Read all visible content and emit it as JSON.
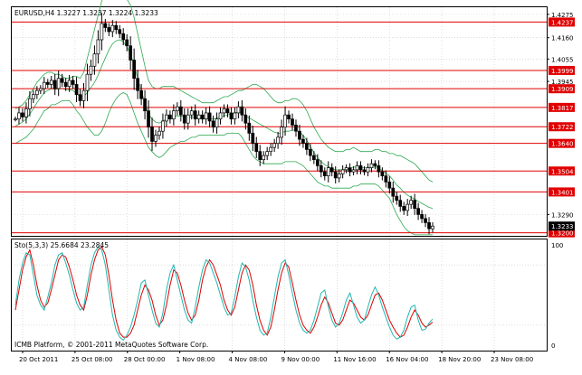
{
  "chart_data": [
    {
      "type": "candlestick",
      "header": "EURUSD,H4  1.3227 1.3237 1.3224 1.3233",
      "ylim": [
        1.3185,
        1.431
      ],
      "y_ticks": [
        "1.4275",
        "1.4160",
        "1.4055",
        "1.3945",
        "1.3290"
      ],
      "horizontal_levels": [
        1.4237,
        1.3999,
        1.3909,
        1.3817,
        1.3722,
        1.364,
        1.3504,
        1.3401,
        1.32
      ],
      "level_labels": [
        "1.4237",
        "1.3999",
        "1.3909",
        "1.3817",
        "1.3722",
        "1.3640",
        "1.3504",
        "1.3401",
        "1.3200"
      ],
      "current_price_label": "1.3233",
      "current_price": 1.3233,
      "x_ticks": [
        "20 Oct 2011",
        "25 Oct 08:00",
        "28 Oct 00:00",
        "1 Nov 08:00",
        "4 Nov 08:00",
        "9 Nov 00:00",
        "11 Nov 16:00",
        "16 Nov 04:00",
        "18 Nov 20:00",
        "23 Nov 08:00"
      ],
      "close": [
        1.376,
        1.379,
        1.377,
        1.381,
        1.386,
        1.388,
        1.39,
        1.391,
        1.394,
        1.393,
        1.395,
        1.391,
        1.396,
        1.394,
        1.392,
        1.395,
        1.393,
        1.388,
        1.385,
        1.39,
        1.398,
        1.402,
        1.408,
        1.415,
        1.423,
        1.421,
        1.419,
        1.422,
        1.42,
        1.418,
        1.415,
        1.412,
        1.405,
        1.396,
        1.39,
        1.386,
        1.38,
        1.372,
        1.365,
        1.368,
        1.37,
        1.375,
        1.378,
        1.376,
        1.38,
        1.382,
        1.378,
        1.374,
        1.378,
        1.38,
        1.376,
        1.378,
        1.376,
        1.379,
        1.375,
        1.372,
        1.376,
        1.379,
        1.381,
        1.379,
        1.376,
        1.379,
        1.382,
        1.378,
        1.374,
        1.369,
        1.364,
        1.36,
        1.356,
        1.358,
        1.36,
        1.362,
        1.364,
        1.367,
        1.372,
        1.378,
        1.376,
        1.373,
        1.37,
        1.366,
        1.364,
        1.361,
        1.358,
        1.356,
        1.353,
        1.35,
        1.348,
        1.352,
        1.35,
        1.347,
        1.349,
        1.351,
        1.352,
        1.35,
        1.351,
        1.353,
        1.351,
        1.35,
        1.352,
        1.354,
        1.353,
        1.35,
        1.348,
        1.345,
        1.342,
        1.338,
        1.336,
        1.333,
        1.331,
        1.334,
        1.336,
        1.332,
        1.329,
        1.327,
        1.325,
        1.322,
        1.3233
      ],
      "bollinger_upper": [
        1.381,
        1.382,
        1.383,
        1.385,
        1.388,
        1.391,
        1.394,
        1.396,
        1.398,
        1.399,
        1.399,
        1.398,
        1.398,
        1.397,
        1.396,
        1.396,
        1.397,
        1.397,
        1.396,
        1.399,
        1.406,
        1.413,
        1.42,
        1.427,
        1.434,
        1.438,
        1.441,
        1.443,
        1.443,
        1.442,
        1.439,
        1.435,
        1.432,
        1.426,
        1.418,
        1.41,
        1.402,
        1.395,
        1.392,
        1.391,
        1.391,
        1.392,
        1.392,
        1.392,
        1.392,
        1.391,
        1.39,
        1.389,
        1.388,
        1.387,
        1.386,
        1.385,
        1.384,
        1.384,
        1.384,
        1.384,
        1.385,
        1.386,
        1.387,
        1.387,
        1.388,
        1.389,
        1.39,
        1.39,
        1.391,
        1.392,
        1.393,
        1.393,
        1.392,
        1.391,
        1.389,
        1.387,
        1.385,
        1.384,
        1.384,
        1.385,
        1.385,
        1.386,
        1.386,
        1.385,
        1.383,
        1.38,
        1.376,
        1.372,
        1.369,
        1.366,
        1.364,
        1.362,
        1.361,
        1.36,
        1.36,
        1.36,
        1.361,
        1.361,
        1.362,
        1.361,
        1.36,
        1.36,
        1.36,
        1.36,
        1.361,
        1.361,
        1.36,
        1.36,
        1.359,
        1.359,
        1.358,
        1.358,
        1.357,
        1.356,
        1.355,
        1.354,
        1.352,
        1.35,
        1.348,
        1.346,
        1.345
      ],
      "bollinger_lower": [
        1.364,
        1.365,
        1.366,
        1.367,
        1.369,
        1.371,
        1.374,
        1.377,
        1.38,
        1.381,
        1.383,
        1.383,
        1.384,
        1.385,
        1.385,
        1.385,
        1.383,
        1.38,
        1.378,
        1.375,
        1.372,
        1.37,
        1.368,
        1.368,
        1.37,
        1.374,
        1.379,
        1.383,
        1.386,
        1.388,
        1.389,
        1.388,
        1.384,
        1.379,
        1.374,
        1.37,
        1.366,
        1.362,
        1.36,
        1.358,
        1.357,
        1.358,
        1.36,
        1.362,
        1.363,
        1.364,
        1.365,
        1.365,
        1.366,
        1.367,
        1.367,
        1.368,
        1.368,
        1.368,
        1.368,
        1.368,
        1.368,
        1.368,
        1.368,
        1.369,
        1.369,
        1.369,
        1.369,
        1.367,
        1.364,
        1.361,
        1.358,
        1.356,
        1.355,
        1.354,
        1.354,
        1.354,
        1.354,
        1.354,
        1.354,
        1.355,
        1.355,
        1.355,
        1.355,
        1.354,
        1.353,
        1.351,
        1.349,
        1.347,
        1.345,
        1.344,
        1.343,
        1.343,
        1.342,
        1.342,
        1.342,
        1.342,
        1.342,
        1.342,
        1.343,
        1.343,
        1.344,
        1.344,
        1.344,
        1.344,
        1.344,
        1.343,
        1.341,
        1.339,
        1.337,
        1.333,
        1.329,
        1.326,
        1.323,
        1.321,
        1.32,
        1.319,
        1.319,
        1.319,
        1.319,
        1.319,
        1.319
      ],
      "bollinger_mid": [
        1.3725,
        1.3735,
        1.3745,
        1.376,
        1.3785,
        1.381,
        1.384,
        1.3865,
        1.389,
        1.39,
        1.391,
        1.3905,
        1.391,
        1.391,
        1.3905,
        1.3905,
        1.39,
        1.3885,
        1.387,
        1.387,
        1.389,
        1.3915,
        1.394,
        1.3975,
        1.402,
        1.406,
        1.41,
        1.413,
        1.4145,
        1.415,
        1.414,
        1.4115,
        1.408,
        1.4025,
        1.396,
        1.39,
        1.384,
        1.3785,
        1.376,
        1.3745,
        1.374,
        1.375,
        1.376,
        1.377,
        1.3775,
        1.3775,
        1.3775,
        1.377,
        1.377,
        1.377,
        1.3765,
        1.3765,
        1.376,
        1.376,
        1.376,
        1.376,
        1.3765,
        1.377,
        1.3775,
        1.378,
        1.3785,
        1.379,
        1.3795,
        1.3785,
        1.3775,
        1.3765,
        1.3755,
        1.3745,
        1.3735,
        1.3725,
        1.3715,
        1.3705,
        1.3695,
        1.369,
        1.369,
        1.37,
        1.37,
        1.3705,
        1.3705,
        1.3695,
        1.368,
        1.3655,
        1.3625,
        1.3595,
        1.357,
        1.355,
        1.3535,
        1.3525,
        1.3515,
        1.351,
        1.351,
        1.351,
        1.3515,
        1.3515,
        1.3525,
        1.352,
        1.352,
        1.352,
        1.352,
        1.352,
        1.3525,
        1.352,
        1.3505,
        1.3495,
        1.348,
        1.346,
        1.3435,
        1.342,
        1.34,
        1.3385,
        1.3375,
        1.3365,
        1.3355,
        1.3345,
        1.3335,
        1.3325,
        1.332
      ]
    },
    {
      "type": "line",
      "label": "Sto(5,3,3) 25.6684 23.2845",
      "ylim": [
        0,
        100
      ],
      "y_ticks": [
        "100",
        "0"
      ],
      "series": [
        {
          "name": "",
          "color": "#e00000",
          "values": [
            35,
            55,
            75,
            88,
            95,
            80,
            60,
            45,
            38,
            42,
            55,
            70,
            85,
            90,
            88,
            78,
            65,
            50,
            40,
            35,
            50,
            70,
            85,
            95,
            98,
            90,
            70,
            45,
            25,
            12,
            8,
            8,
            12,
            20,
            35,
            50,
            60,
            55,
            45,
            30,
            20,
            25,
            40,
            60,
            75,
            72,
            60,
            45,
            32,
            25,
            30,
            45,
            65,
            78,
            85,
            80,
            70,
            60,
            45,
            35,
            30,
            38,
            55,
            72,
            80,
            75,
            60,
            40,
            25,
            15,
            10,
            18,
            35,
            55,
            72,
            82,
            78,
            62,
            45,
            30,
            20,
            15,
            12,
            18,
            28,
            40,
            48,
            42,
            32,
            22,
            20,
            25,
            35,
            45,
            42,
            35,
            28,
            25,
            30,
            40,
            50,
            52,
            45,
            35,
            25,
            18,
            12,
            8,
            10,
            18,
            28,
            35,
            30,
            22,
            18,
            20,
            23
          ]
        },
        {
          "name": "",
          "color": "#20b8b0",
          "values": [
            40,
            65,
            82,
            92,
            90,
            70,
            50,
            40,
            35,
            48,
            62,
            80,
            90,
            92,
            82,
            70,
            55,
            42,
            35,
            38,
            60,
            80,
            92,
            98,
            95,
            80,
            55,
            30,
            15,
            8,
            5,
            10,
            18,
            30,
            45,
            62,
            65,
            50,
            35,
            22,
            18,
            32,
            55,
            72,
            80,
            65,
            50,
            35,
            25,
            22,
            38,
            58,
            75,
            85,
            82,
            72,
            62,
            50,
            38,
            30,
            32,
            48,
            68,
            82,
            78,
            65,
            45,
            28,
            15,
            10,
            12,
            28,
            48,
            68,
            82,
            85,
            70,
            52,
            35,
            22,
            15,
            12,
            15,
            25,
            38,
            52,
            55,
            38,
            25,
            18,
            22,
            32,
            45,
            52,
            40,
            28,
            22,
            25,
            38,
            50,
            58,
            50,
            38,
            28,
            18,
            10,
            6,
            8,
            15,
            28,
            38,
            40,
            25,
            15,
            16,
            22,
            26
          ]
        }
      ]
    }
  ],
  "footer": "ICMB Platform, © 2001-2011 MetaQuotes Software Corp.",
  "colors": {
    "level_line": "#e00000",
    "label_bg": "#e00000",
    "price_label_bg": "#000000",
    "grid": "#c8c8c8",
    "bands": "#2ea84f",
    "candle": "#000000"
  }
}
